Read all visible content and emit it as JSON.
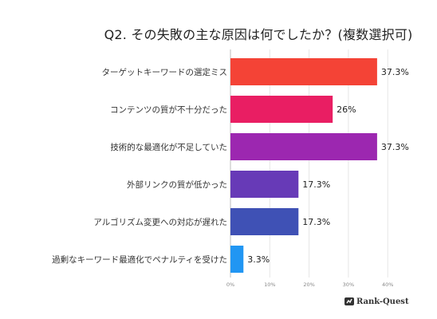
{
  "title": "Q2. その失敗の主な原因は何でしたか？(複数選択可)",
  "brand": "Rank-Quest",
  "chart_data": {
    "type": "bar",
    "orientation": "horizontal",
    "title": "Q2. その失敗の主な原因は何でしたか？(複数選択可)",
    "xlabel": "",
    "ylabel": "",
    "xlim": [
      0,
      42
    ],
    "grid": true,
    "ticks": [
      "0%",
      "10%",
      "20%",
      "30%",
      "40%"
    ],
    "tick_values": [
      0,
      10,
      20,
      30,
      40
    ],
    "categories": [
      "ターゲットキーワードの選定ミス",
      "コンテンツの質が不十分だった",
      "技術的な最適化が不足していた",
      "外部リンクの質が低かった",
      "アルゴリズム変更への対応が遅れた",
      "過剰なキーワード最適化でペナルティを受けた"
    ],
    "values": [
      37.3,
      26,
      37.3,
      17.3,
      17.3,
      3.3
    ],
    "value_labels": [
      "37.3%",
      "26%",
      "37.3%",
      "17.3%",
      "17.3%",
      "3.3%"
    ],
    "colors": [
      "#f44336",
      "#e91e63",
      "#9c27b0",
      "#673ab7",
      "#3f51b5",
      "#2196f3"
    ]
  }
}
